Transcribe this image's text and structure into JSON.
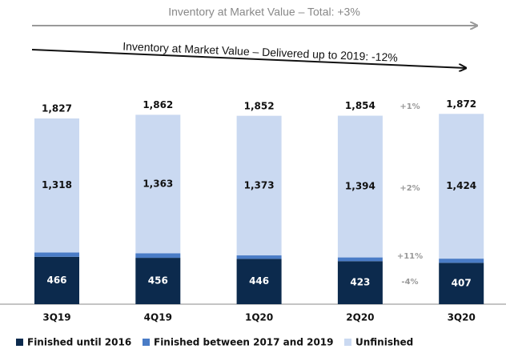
{
  "chart_data": {
    "type": "stacked_bar",
    "annotations": [
      "Inventory at Market Value – Total: +3%",
      "Inventory at Market Value – Delivered up to 2019: -12%"
    ],
    "categories": [
      "3Q19",
      "4Q19",
      "1Q20",
      "2Q20",
      "3Q20"
    ],
    "series": [
      {
        "name": "Finished until 2016",
        "color": "#0c2a4d",
        "values": [
          466,
          456,
          446,
          423,
          407
        ]
      },
      {
        "name": "Finished between 2017 and 2019",
        "color": "#4a7cc6",
        "values": [
          43,
          44,
          34,
          37,
          41
        ]
      },
      {
        "name": "Unfinished",
        "color": "#cad9f1",
        "values": [
          1318,
          1363,
          1373,
          1394,
          1424
        ],
        "value_labels": [
          "1,318",
          "1,363",
          "1,373",
          "1,394",
          "1,424"
        ]
      }
    ],
    "totals": [
      1827,
      1862,
      1852,
      1854,
      1872
    ],
    "total_labels": [
      "1,827",
      "1,862",
      "1,852",
      "1,854",
      "1,872"
    ],
    "changes": [
      "+1%",
      "+2%",
      "+11%",
      "-4%"
    ]
  }
}
